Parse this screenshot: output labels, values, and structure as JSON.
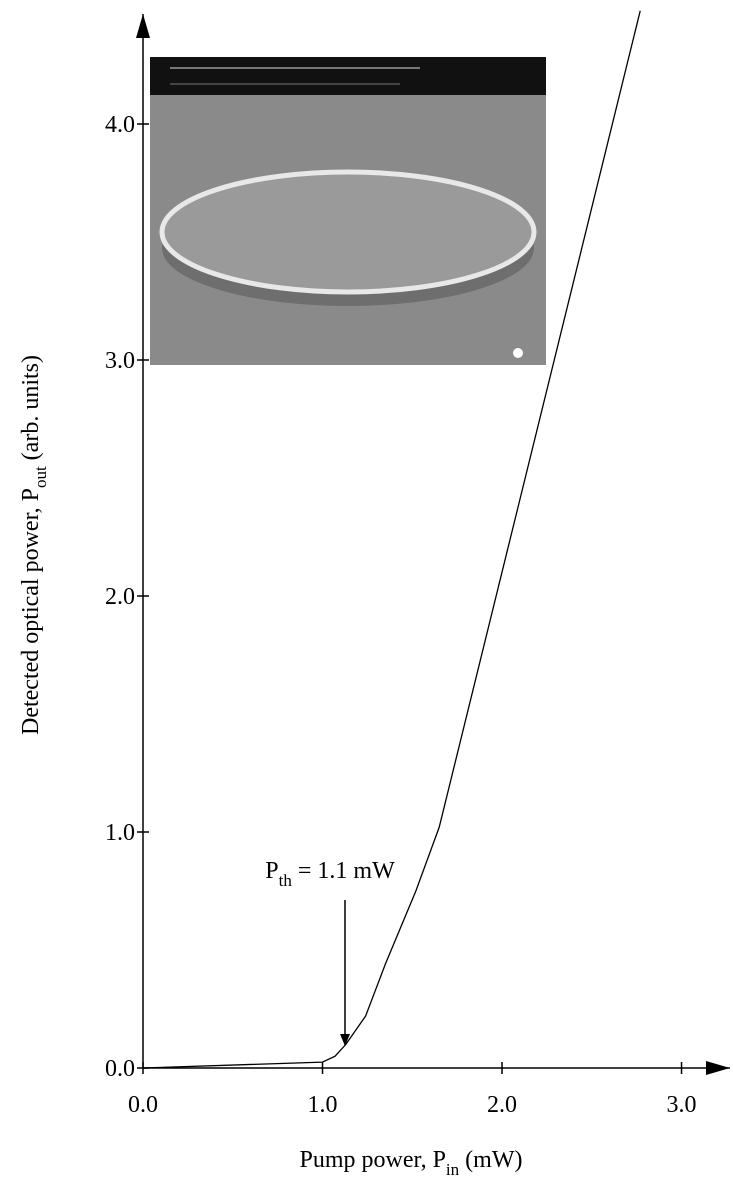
{
  "chart_data": {
    "type": "line",
    "x_label": {
      "before": "Pump power, P",
      "sub": "in",
      "after": " (mW)"
    },
    "y_label": {
      "before": "Detected optical power, P",
      "sub": "out",
      "after": " (arb. units)"
    },
    "annotation": {
      "before": "P",
      "sub": "th",
      "after": " = 1.1 mW"
    },
    "x": [
      0,
      1.0,
      1.07,
      1.13,
      1.24,
      1.35,
      1.52,
      1.65,
      2.77
    ],
    "series": [
      {
        "color": "#000000",
        "values": [
          0,
          0.025,
          0.05,
          0.1,
          0.22,
          0.44,
          0.75,
          1.02,
          4.48
        ]
      }
    ],
    "xlim": [
      0,
      3.27
    ],
    "ylim": [
      0,
      4.5
    ],
    "xticks": [
      {
        "value": 0,
        "label": "0.0"
      },
      {
        "value": 1,
        "label": "1.0"
      },
      {
        "value": 2,
        "label": "2.0"
      },
      {
        "value": 3,
        "label": "3.0"
      }
    ],
    "yticks": [
      {
        "value": 0,
        "label": "0.0"
      },
      {
        "value": 1,
        "label": "1.0"
      },
      {
        "value": 2,
        "label": "2.0"
      },
      {
        "value": 3,
        "label": "3.0"
      },
      {
        "value": 4,
        "label": "4.0"
      }
    ]
  }
}
